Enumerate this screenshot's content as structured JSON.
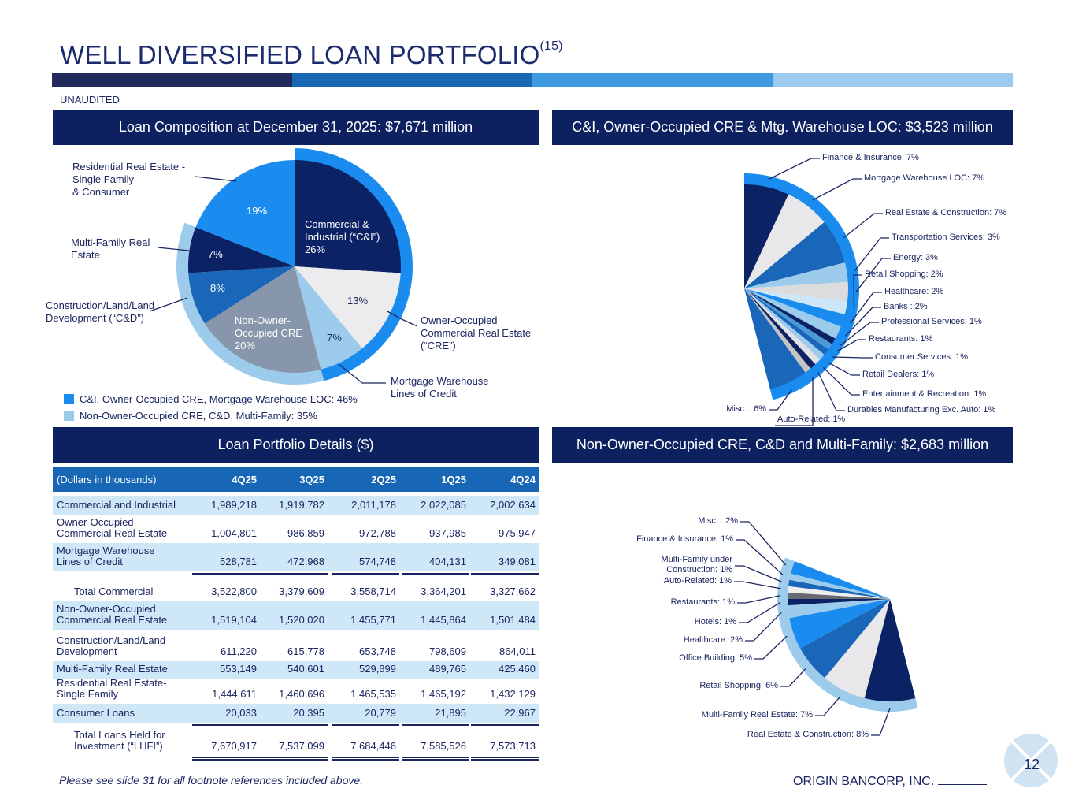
{
  "title": "WELL DIVERSIFIED LOAN PORTFOLIO",
  "title_footnote": "(15)",
  "unaudited": "UNAUDITED",
  "panels": {
    "loan_composition": "Loan Composition at December 31, 2025: $7,671 million",
    "ci_breakdown": "C&I, Owner-Occupied CRE & Mtg. Warehouse LOC: $3,523 million",
    "portfolio_details": "Loan Portfolio Details ($)",
    "noo_breakdown": "Non-Owner-Occupied CRE, C&D and Multi-Family: $2,683 million"
  },
  "legend": [
    {
      "label": "C&I, Owner-Occupied CRE, Mortgage Warehouse LOC: 46%",
      "color": "#1a8cf0"
    },
    {
      "label": "Non-Owner-Occupied CRE, C&D, Multi-Family: 35%",
      "color": "#9ccbeb"
    }
  ],
  "colors": {
    "navy": "#0d2161",
    "header_blue": "#1767b6",
    "row_shade": "#cfe8f8",
    "bright_blue": "#1a8cf0",
    "light_blue": "#9ccbeb"
  },
  "chart_data": [
    {
      "type": "pie",
      "title": "Loan Composition at December 31, 2025: $7,671 million",
      "slices": [
        {
          "name": "Commercial & Industrial",
          "label": "Commercial &\nIndustrial (“C&I”)\n26%",
          "value": 26,
          "color": "#0b2265"
        },
        {
          "name": "Owner-Occupied CRE",
          "label": "13%",
          "value": 13,
          "color": "#ececee"
        },
        {
          "name": "Mortgage Warehouse",
          "label": "7%",
          "value": 7,
          "color": "#9ccbeb"
        },
        {
          "name": "Non-Owner-Occupied CRE",
          "label": "Non-Owner-\nOccupied CRE\n20%",
          "value": 20,
          "color": "#8796aa"
        },
        {
          "name": "Construction/Land/Land Development",
          "label": "8%",
          "value": 8,
          "color": "#1a66b8"
        },
        {
          "name": "Multi-Family Real Estate",
          "label": "7%",
          "value": 7,
          "color": "#0b2265"
        },
        {
          "name": "Residential Real Estate & Consumer",
          "label": "19%",
          "value": 19,
          "color": "#1a8cf0"
        }
      ],
      "callouts": {
        "residential": "Residential Real Estate -\nSingle Family\n& Consumer",
        "multifamily": "Multi-Family Real\nEstate",
        "cd": "Construction/Land/Land\nDevelopment (“C&D”)",
        "oocre": "Owner-Occupied\nCommercial Real Estate\n(“CRE”)",
        "mw": "Mortgage Warehouse\nLines of Credit"
      },
      "rings": [
        {
          "from": 0,
          "to": 46,
          "color": "#1a8cf0"
        },
        {
          "from": 46,
          "to": 81,
          "color": "#9ccbeb"
        }
      ]
    },
    {
      "type": "pie",
      "title": "C&I, Owner-Occupied CRE & Mtg. Warehouse LOC: $3,523 million",
      "start_pct": 0,
      "ring_color": "#1a8cf0",
      "slices": [
        {
          "label": "Finance & Insurance: 7%",
          "value": 7,
          "color": "#0b2265"
        },
        {
          "label": "Mortgage Warehouse LOC: 7%",
          "value": 7,
          "color": "#e8e8ea"
        },
        {
          "label": "Real Estate & Construction: 7%",
          "value": 7,
          "color": "#1a66b8"
        },
        {
          "label": "Transportation Services: 3%",
          "value": 3,
          "color": "#9ccbeb"
        },
        {
          "label": "Energy: 3%",
          "value": 3,
          "color": "#dcdcde"
        },
        {
          "label": "Retail Shopping: 2%",
          "value": 2,
          "color": "#cfe6f8"
        },
        {
          "label": "Healthcare: 2%",
          "value": 2,
          "color": "#1a8cf0"
        },
        {
          "label": "Banks : 2%",
          "value": 2,
          "color": "#9ccbeb"
        },
        {
          "label": "Professional Services: 1%",
          "value": 1,
          "color": "#0b2265"
        },
        {
          "label": "Restaurants: 1%",
          "value": 1,
          "color": "#4a9ad8"
        },
        {
          "label": "Consumer Services: 1%",
          "value": 1,
          "color": "#1a66b8"
        },
        {
          "label": "Retail Dealers: 1%",
          "value": 1,
          "color": "#9ccbeb"
        },
        {
          "label": "Entertainment & Recreation: 1%",
          "value": 1,
          "color": "#e2e2e4"
        },
        {
          "label": "Durables Manufacturing Exc. Auto: 1%",
          "value": 1,
          "color": "#0b2265"
        },
        {
          "label": "Auto-Related: 1%",
          "value": 1,
          "color": "#c4c4c4"
        },
        {
          "label": "Misc. : 6%",
          "value": 6,
          "color": "#1a66b8"
        }
      ]
    },
    {
      "type": "pie",
      "title": "Non-Owner-Occupied CRE, C&D and Multi-Family: $2,683 million",
      "start_pct": 46,
      "ring_color": "#9ccbeb",
      "slices": [
        {
          "label": "Real Estate & Construction: 8%",
          "value": 8,
          "color": "#0b2265"
        },
        {
          "label": "Multi-Family Real Estate: 7%",
          "value": 7,
          "color": "#e8e8ea"
        },
        {
          "label": "Retail Shopping: 6%",
          "value": 6,
          "color": "#1a66b8"
        },
        {
          "label": "Office Building: 5%",
          "value": 5,
          "color": "#1a8cf0"
        },
        {
          "label": "Healthcare: 2%",
          "value": 2,
          "color": "#9ccbeb"
        },
        {
          "label": "Hotels: 1%",
          "value": 1,
          "color": "#0b2265"
        },
        {
          "label": "Restaurants: 1%",
          "value": 1,
          "color": "#666a70"
        },
        {
          "label": "Auto-Related: 1%",
          "value": 1,
          "color": "#eeeeee"
        },
        {
          "label": "Multi-Family under\nConstruction: 1%",
          "value": 1,
          "color": "#1a66b8"
        },
        {
          "label": "Finance & Insurance: 1%",
          "value": 1,
          "color": "#9ccbeb"
        },
        {
          "label": "Misc. : 2%",
          "value": 2,
          "color": "#1a8cf0"
        }
      ]
    }
  ],
  "table": {
    "header": [
      "(Dollars in thousands)",
      "4Q25",
      "3Q25",
      "2Q25",
      "1Q25",
      "4Q24"
    ],
    "rows": [
      {
        "label": "Commercial and Industrial",
        "values": [
          "1,989,218",
          "1,919,782",
          "2,011,178",
          "2,022,085",
          "2,002,634"
        ]
      },
      {
        "label": "Owner-Occupied\nCommercial Real Estate",
        "values": [
          "1,004,801",
          "986,859",
          "972,788",
          "937,985",
          "975,947"
        ]
      },
      {
        "label": "Mortgage Warehouse\nLines of Credit",
        "values": [
          "528,781",
          "472,968",
          "574,748",
          "404,131",
          "349,081"
        ]
      },
      {
        "label": "Total Commercial",
        "values": [
          "3,522,800",
          "3,379,609",
          "3,558,714",
          "3,364,201",
          "3,327,662"
        ]
      },
      {
        "label": "Non-Owner-Occupied\nCommercial Real Estate",
        "values": [
          "1,519,104",
          "1,520,020",
          "1,455,771",
          "1,445,864",
          "1,501,484"
        ]
      },
      {
        "label": "Construction/Land/Land\nDevelopment",
        "values": [
          "611,220",
          "615,778",
          "653,748",
          "798,609",
          "864,011"
        ]
      },
      {
        "label": "Multi-Family Real Estate",
        "values": [
          "553,149",
          "540,601",
          "529,899",
          "489,765",
          "425,460"
        ]
      },
      {
        "label": "Residential Real Estate-\nSingle Family",
        "values": [
          "1,444,611",
          "1,460,696",
          "1,465,535",
          "1,465,192",
          "1,432,129"
        ]
      },
      {
        "label": "Consumer Loans",
        "values": [
          "20,033",
          "20,395",
          "20,779",
          "21,895",
          "22,967"
        ]
      },
      {
        "label": "Total Loans Held for\nInvestment (“LHFI”)",
        "values": [
          "7,670,917",
          "7,537,099",
          "7,684,446",
          "7,585,526",
          "7,573,713"
        ]
      }
    ]
  },
  "footnote": "Please see slide 31 for all footnote references included above.",
  "footer": {
    "company": "ORIGIN BANCORP, INC.",
    "page_number": "12"
  }
}
